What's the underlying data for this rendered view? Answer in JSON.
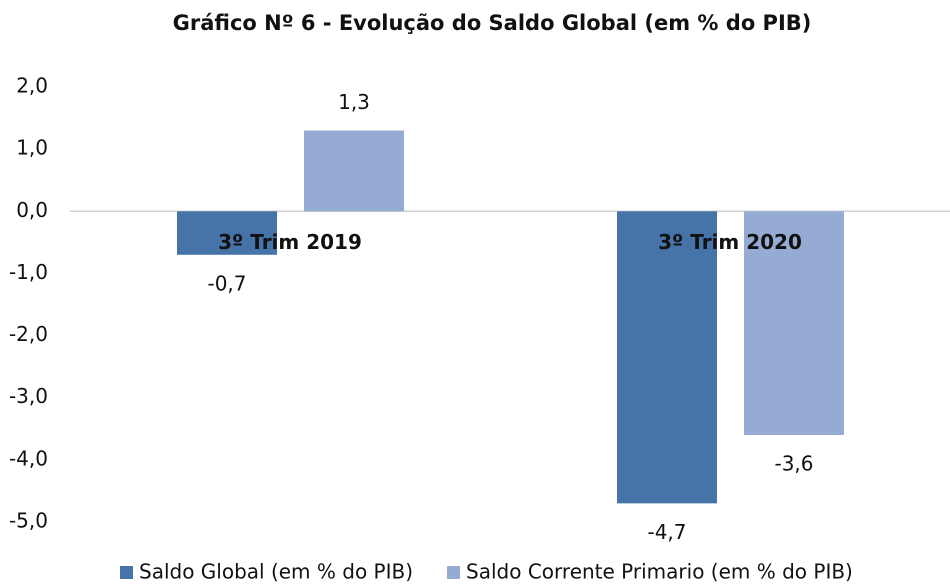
{
  "chart_data": {
    "type": "bar",
    "title": "Gráfico  Nº 6 - Evolução do Saldo Global (em % do PIB)",
    "categories": [
      "3º Trim 2019",
      "3º Trim 2020"
    ],
    "series": [
      {
        "name": "Saldo Global (em % do PIB)",
        "color": "#4674a9",
        "values": [
          -0.7,
          -4.7
        ],
        "value_labels": [
          "-0,7",
          "-4,7"
        ]
      },
      {
        "name": "Saldo Corrente Primario (em % do PIB)",
        "color": "#95abd3",
        "values": [
          1.3,
          -3.6
        ],
        "value_labels": [
          "1,3",
          "-3,6"
        ]
      }
    ],
    "ylim": [
      -5,
      2
    ],
    "yticks": [
      {
        "value": -5,
        "label": "-5,0"
      },
      {
        "value": -4,
        "label": "-4,0"
      },
      {
        "value": -3,
        "label": "-3,0"
      },
      {
        "value": -2,
        "label": "-2,0"
      },
      {
        "value": -1,
        "label": "-1,0"
      },
      {
        "value": 0,
        "label": "0,0"
      },
      {
        "value": 1,
        "label": "1,0"
      },
      {
        "value": 2,
        "label": "2,0"
      }
    ],
    "grid": false,
    "legend": "bottom"
  }
}
